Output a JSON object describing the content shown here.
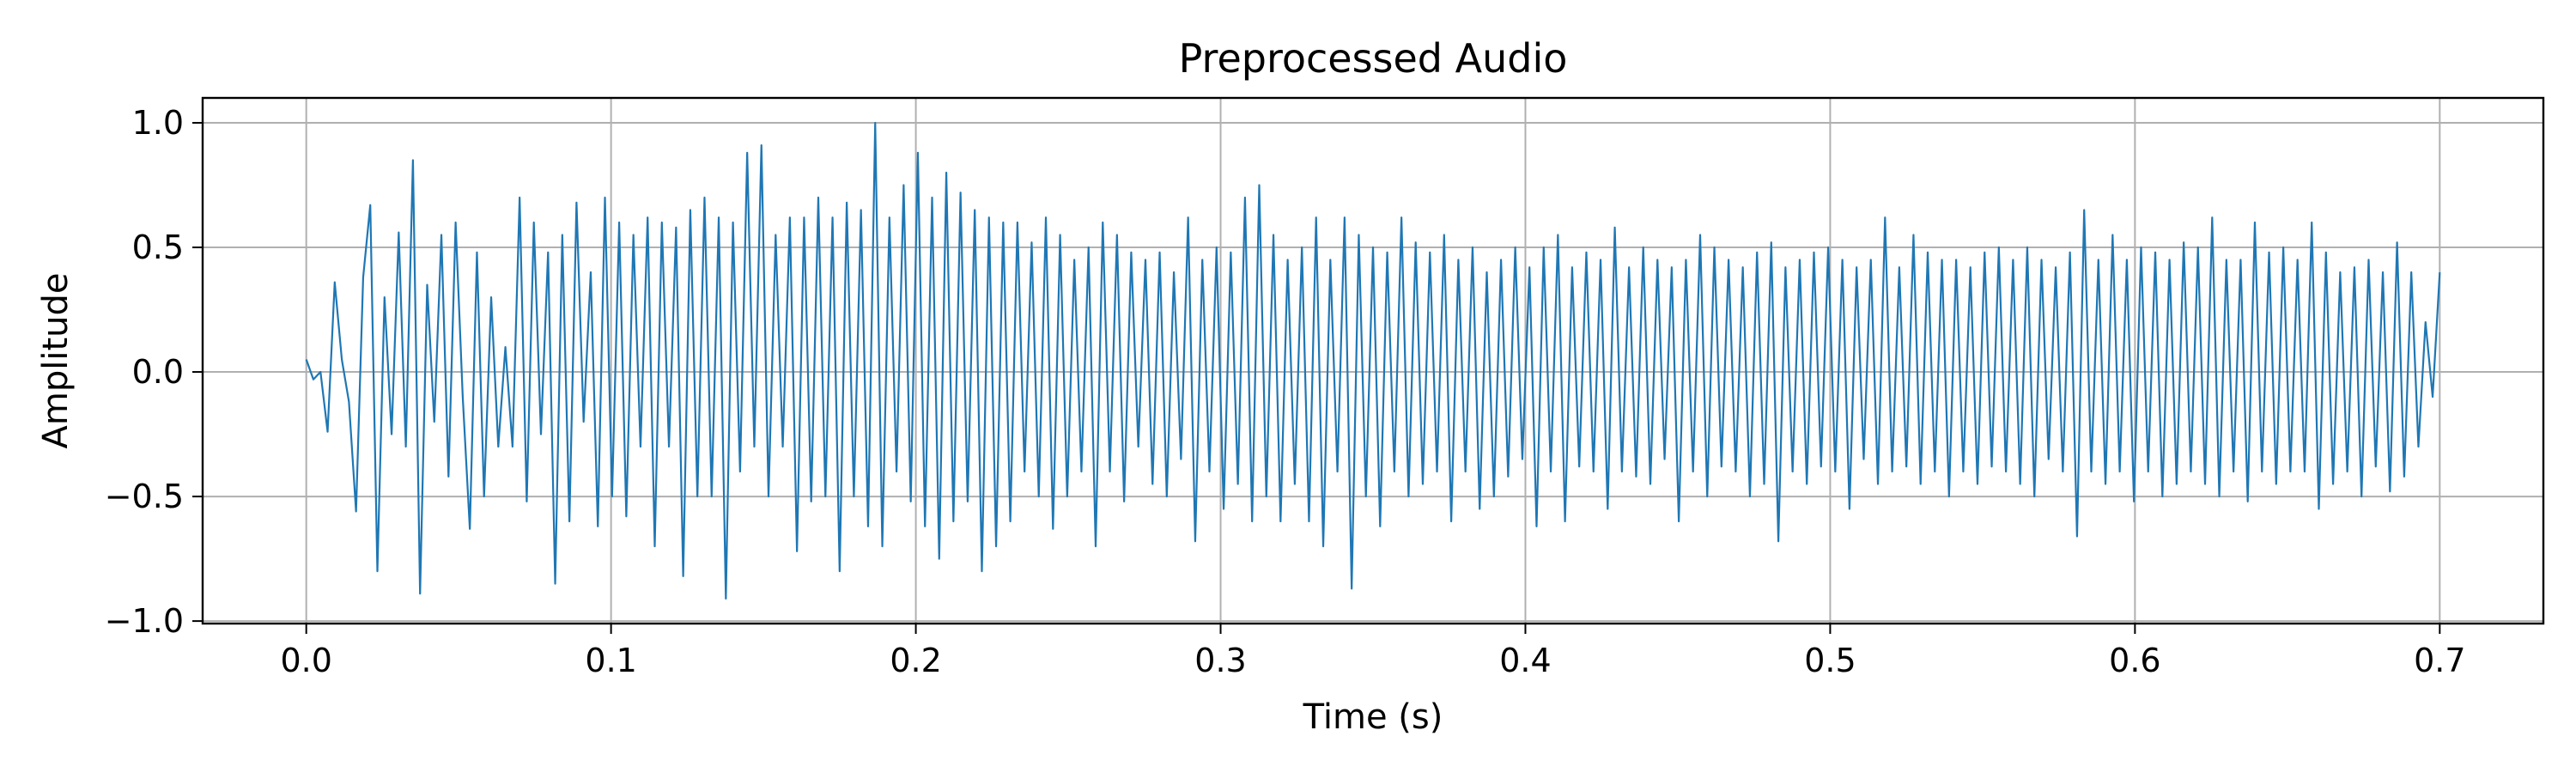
{
  "chart_data": {
    "type": "line",
    "title": "Preprocessed Audio",
    "xlabel": "Time (s)",
    "ylabel": "Amplitude",
    "xlim": [
      -0.034,
      0.734
    ],
    "ylim": [
      -1.01,
      1.1
    ],
    "xticks": [
      0.0,
      0.1,
      0.2,
      0.3,
      0.4,
      0.5,
      0.6,
      0.7
    ],
    "xtick_labels": [
      "0.0",
      "0.1",
      "0.2",
      "0.3",
      "0.4",
      "0.5",
      "0.6",
      "0.7"
    ],
    "yticks": [
      -1.0,
      -0.5,
      0.0,
      0.5,
      1.0
    ],
    "ytick_labels": [
      "−1.0",
      "−0.5",
      "0.0",
      "0.5",
      "1.0"
    ],
    "grid": true,
    "series": [
      {
        "color": "#1f77b4",
        "x_start": 0.0,
        "x_end": 0.7,
        "values": [
          0.05,
          -0.03,
          0.0,
          -0.24,
          0.36,
          0.05,
          -0.12,
          -0.56,
          0.38,
          0.67,
          -0.8,
          0.3,
          -0.25,
          0.56,
          -0.3,
          0.85,
          -0.89,
          0.35,
          -0.2,
          0.55,
          -0.42,
          0.6,
          -0.1,
          -0.63,
          0.48,
          -0.5,
          0.3,
          -0.3,
          0.1,
          -0.3,
          0.7,
          -0.52,
          0.6,
          -0.25,
          0.48,
          -0.85,
          0.55,
          -0.6,
          0.68,
          -0.2,
          0.4,
          -0.62,
          0.7,
          -0.5,
          0.6,
          -0.58,
          0.55,
          -0.3,
          0.62,
          -0.7,
          0.6,
          -0.3,
          0.58,
          -0.82,
          0.65,
          -0.5,
          0.7,
          -0.5,
          0.62,
          -0.91,
          0.6,
          -0.4,
          0.88,
          -0.3,
          0.91,
          -0.5,
          0.55,
          -0.3,
          0.62,
          -0.72,
          0.62,
          -0.52,
          0.7,
          -0.5,
          0.62,
          -0.8,
          0.68,
          -0.5,
          0.65,
          -0.62,
          1.0,
          -0.7,
          0.62,
          -0.4,
          0.75,
          -0.52,
          0.88,
          -0.62,
          0.7,
          -0.75,
          0.8,
          -0.6,
          0.72,
          -0.52,
          0.65,
          -0.8,
          0.62,
          -0.7,
          0.6,
          -0.6,
          0.6,
          -0.4,
          0.52,
          -0.5,
          0.62,
          -0.63,
          0.55,
          -0.5,
          0.45,
          -0.4,
          0.5,
          -0.7,
          0.6,
          -0.4,
          0.55,
          -0.52,
          0.48,
          -0.3,
          0.45,
          -0.45,
          0.48,
          -0.5,
          0.4,
          -0.35,
          0.62,
          -0.68,
          0.45,
          -0.4,
          0.5,
          -0.55,
          0.48,
          -0.45,
          0.7,
          -0.6,
          0.75,
          -0.5,
          0.55,
          -0.6,
          0.45,
          -0.45,
          0.5,
          -0.6,
          0.62,
          -0.7,
          0.45,
          -0.4,
          0.62,
          -0.87,
          0.55,
          -0.5,
          0.5,
          -0.62,
          0.48,
          -0.4,
          0.62,
          -0.5,
          0.52,
          -0.45,
          0.48,
          -0.4,
          0.55,
          -0.6,
          0.45,
          -0.4,
          0.5,
          -0.55,
          0.4,
          -0.5,
          0.45,
          -0.42,
          0.5,
          -0.35,
          0.42,
          -0.62,
          0.5,
          -0.4,
          0.55,
          -0.6,
          0.42,
          -0.38,
          0.48,
          -0.4,
          0.45,
          -0.55,
          0.58,
          -0.4,
          0.42,
          -0.42,
          0.5,
          -0.45,
          0.45,
          -0.35,
          0.42,
          -0.6,
          0.45,
          -0.4,
          0.55,
          -0.5,
          0.5,
          -0.38,
          0.45,
          -0.4,
          0.42,
          -0.5,
          0.48,
          -0.45,
          0.52,
          -0.68,
          0.42,
          -0.4,
          0.45,
          -0.45,
          0.48,
          -0.38,
          0.5,
          -0.4,
          0.45,
          -0.55,
          0.42,
          -0.35,
          0.45,
          -0.45,
          0.62,
          -0.4,
          0.42,
          -0.38,
          0.55,
          -0.45,
          0.48,
          -0.4,
          0.45,
          -0.5,
          0.45,
          -0.4,
          0.42,
          -0.45,
          0.48,
          -0.38,
          0.5,
          -0.4,
          0.45,
          -0.45,
          0.5,
          -0.5,
          0.45,
          -0.35,
          0.42,
          -0.4,
          0.48,
          -0.66,
          0.65,
          -0.4,
          0.45,
          -0.45,
          0.55,
          -0.4,
          0.45,
          -0.52,
          0.5,
          -0.4,
          0.48,
          -0.5,
          0.45,
          -0.45,
          0.52,
          -0.4,
          0.5,
          -0.45,
          0.62,
          -0.5,
          0.45,
          -0.4,
          0.45,
          -0.52,
          0.6,
          -0.4,
          0.48,
          -0.45,
          0.5,
          -0.4,
          0.45,
          -0.4,
          0.6,
          -0.55,
          0.48,
          -0.45,
          0.4,
          -0.4,
          0.42,
          -0.5,
          0.45,
          -0.38,
          0.4,
          -0.48,
          0.52,
          -0.42,
          0.4,
          -0.3,
          0.2,
          -0.1,
          0.4
        ]
      }
    ]
  }
}
